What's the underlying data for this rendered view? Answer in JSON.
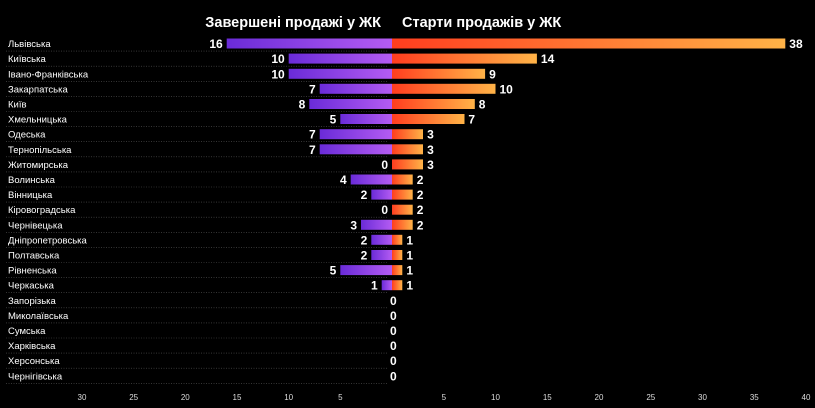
{
  "chart_data": {
    "type": "bar",
    "orientation": "horizontal-diverging",
    "series": [
      {
        "name": "Завершені продажі у ЖК",
        "side": "left",
        "values": [
          16,
          10,
          10,
          7,
          8,
          5,
          7,
          7,
          0,
          4,
          2,
          0,
          3,
          2,
          2,
          5,
          1,
          0,
          0,
          0,
          0,
          0,
          0
        ],
        "gradient": [
          "#6a2bd8",
          "#b45cf2"
        ]
      },
      {
        "name": "Старти продажів у ЖК",
        "side": "right",
        "values": [
          38,
          14,
          9,
          10,
          8,
          7,
          3,
          3,
          3,
          2,
          2,
          2,
          2,
          1,
          1,
          1,
          1,
          0,
          0,
          0,
          0,
          0,
          0
        ],
        "gradient": [
          "#ff3d1f",
          "#ffb347"
        ]
      }
    ],
    "categories": [
      "Львівська",
      "Київська",
      "Івано-Франківська",
      "Закарпатська",
      "Київ",
      "Хмельницька",
      "Одеська",
      "Тернопільська",
      "Житомирська",
      "Волинська",
      "Вінницька",
      "Кіровоградська",
      "Чернівецька",
      "Дніпропетровська",
      "Полтавська",
      "Рівненська",
      "Черкаська",
      "Запорізька",
      "Миколаївська",
      "Сумська",
      "Харківська",
      "Херсонська",
      "Чернігівська"
    ],
    "left_axis": {
      "max": 30,
      "ticks": [
        30,
        25,
        20,
        15,
        10,
        5
      ]
    },
    "right_axis": {
      "max": 40,
      "ticks": [
        5,
        10,
        15,
        20,
        25,
        30,
        35,
        40
      ]
    },
    "grid": false,
    "row_separators": true
  }
}
